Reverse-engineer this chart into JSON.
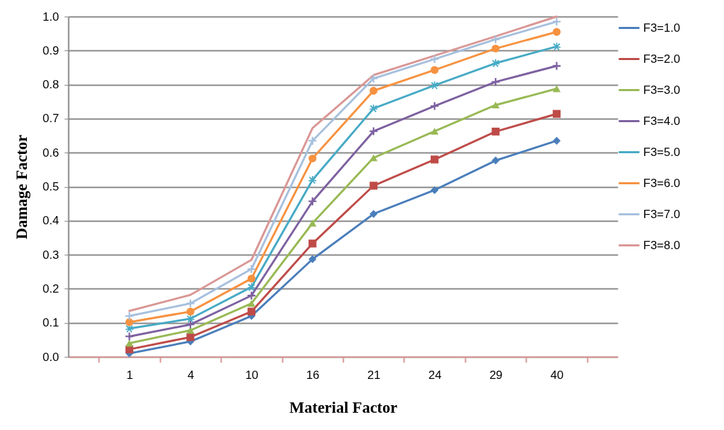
{
  "chart_data": {
    "type": "line",
    "xlabel": "Material Factor",
    "ylabel": "Damage Factor",
    "categories": [
      "1",
      "4",
      "10",
      "16",
      "21",
      "24",
      "29",
      "40"
    ],
    "ylim": [
      0,
      1
    ],
    "yticks": [
      {
        "value": 0,
        "label": "0.0"
      },
      {
        "value": 0.1,
        "label": "0.1"
      },
      {
        "value": 0.2,
        "label": "0.2"
      },
      {
        "value": 0.3,
        "label": "0.3"
      },
      {
        "value": 0.4,
        "label": "0.4"
      },
      {
        "value": 0.5,
        "label": "0.5"
      },
      {
        "value": 0.6,
        "label": "0.6"
      },
      {
        "value": 0.7,
        "label": "0.7"
      },
      {
        "value": 0.8,
        "label": "0.8"
      },
      {
        "value": 0.9,
        "label": "0.9"
      },
      {
        "value": 1,
        "label": "1.0"
      }
    ],
    "grid": "y",
    "legend": "right",
    "series": [
      {
        "name": "F3=1.0",
        "color": "#4a7ebb",
        "marker": "diamond",
        "values": [
          0.01,
          0.045,
          0.12,
          0.287,
          0.42,
          0.49,
          0.577,
          0.635
        ]
      },
      {
        "name": "F3=2.0",
        "color": "#be4b48",
        "marker": "square",
        "values": [
          0.022,
          0.058,
          0.133,
          0.333,
          0.503,
          0.58,
          0.662,
          0.714
        ]
      },
      {
        "name": "F3=3.0",
        "color": "#98b954",
        "marker": "triangle",
        "values": [
          0.04,
          0.078,
          0.157,
          0.393,
          0.585,
          0.663,
          0.74,
          0.788
        ]
      },
      {
        "name": "F3=4.0",
        "color": "#7d60a0",
        "marker": "cross",
        "values": [
          0.06,
          0.095,
          0.18,
          0.457,
          0.663,
          0.737,
          0.808,
          0.855
        ]
      },
      {
        "name": "F3=5.0",
        "color": "#46aac5",
        "marker": "star",
        "values": [
          0.083,
          0.112,
          0.205,
          0.52,
          0.73,
          0.798,
          0.863,
          0.912
        ]
      },
      {
        "name": "F3=6.0",
        "color": "#f69240",
        "marker": "circle",
        "values": [
          0.102,
          0.133,
          0.23,
          0.583,
          0.782,
          0.843,
          0.906,
          0.955
        ]
      },
      {
        "name": "F3=7.0",
        "color": "#a7c0de",
        "marker": "cross",
        "values": [
          0.12,
          0.157,
          0.258,
          0.635,
          0.818,
          0.875,
          0.933,
          0.985
        ]
      },
      {
        "name": "F3=8.0",
        "color": "#d99795",
        "marker": "none",
        "values": [
          0.135,
          0.182,
          0.285,
          0.672,
          0.828,
          0.885,
          0.942,
          1.0
        ]
      }
    ]
  }
}
